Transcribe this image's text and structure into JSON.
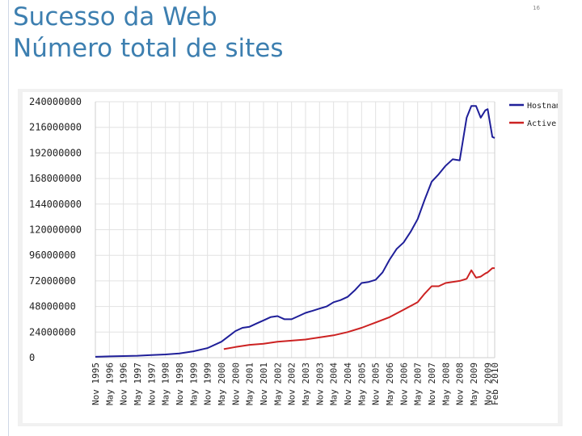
{
  "slide": {
    "title_line1": "Sucesso da Web",
    "title_line2": "Número total de sites",
    "number": "16"
  },
  "chart_data": {
    "type": "line",
    "ylim": [
      0,
      240000000
    ],
    "yticks": [
      0,
      24000000,
      48000000,
      72000000,
      96000000,
      120000000,
      144000000,
      168000000,
      192000000,
      216000000,
      240000000
    ],
    "ytick_labels": [
      "0",
      "24000000",
      "48000000",
      "72000000",
      "96000000",
      "120000000",
      "144000000",
      "168000000",
      "192000000",
      "216000000",
      "240000000"
    ],
    "x_tick_labels": [
      "Nov 1995",
      "May 1996",
      "Nov 1996",
      "May 1997",
      "Nov 1997",
      "May 1998",
      "Nov 1998",
      "May 1999",
      "Nov 1999",
      "May 2000",
      "Nov 2000",
      "May 2001",
      "Nov 2001",
      "May 2002",
      "Nov 2002",
      "May 2003",
      "Nov 2003",
      "May 2004",
      "Nov 2004",
      "May 2005",
      "Nov 2005",
      "May 2006",
      "Nov 2006",
      "May 2007",
      "Nov 2007",
      "May 2008",
      "Nov 2008",
      "May 2009",
      "Nov 2009",
      "Feb 2010"
    ],
    "x_tick_months": [
      0,
      6,
      12,
      18,
      24,
      30,
      36,
      42,
      48,
      54,
      60,
      66,
      72,
      78,
      84,
      90,
      96,
      102,
      108,
      114,
      120,
      126,
      132,
      138,
      144,
      150,
      156,
      162,
      168,
      171
    ],
    "grid": true,
    "legend_position": "right",
    "series": [
      {
        "name": "Hostnames",
        "color": "#1f1f99",
        "x": [
          "1995-11",
          "1996-05",
          "1996-11",
          "1997-05",
          "1997-11",
          "1998-05",
          "1998-11",
          "1999-05",
          "1999-11",
          "2000-05",
          "2000-08",
          "2000-11",
          "2001-02",
          "2001-05",
          "2001-08",
          "2001-11",
          "2002-02",
          "2002-05",
          "2002-08",
          "2002-11",
          "2003-02",
          "2003-05",
          "2003-08",
          "2003-11",
          "2004-02",
          "2004-05",
          "2004-08",
          "2004-11",
          "2005-02",
          "2005-05",
          "2005-08",
          "2005-11",
          "2006-02",
          "2006-05",
          "2006-08",
          "2006-11",
          "2007-02",
          "2007-05",
          "2007-08",
          "2007-11",
          "2008-02",
          "2008-05",
          "2008-08",
          "2008-11",
          "2009-02",
          "2009-04",
          "2009-06",
          "2009-08",
          "2009-10",
          "2009-11",
          "2010-01",
          "2010-02"
        ],
        "values": [
          800000,
          1200000,
          1500000,
          1800000,
          2500000,
          3000000,
          4000000,
          6000000,
          9000000,
          15000000,
          20000000,
          25000000,
          28000000,
          29000000,
          32000000,
          35000000,
          38000000,
          39000000,
          36000000,
          36000000,
          39000000,
          42000000,
          44000000,
          46000000,
          48000000,
          52000000,
          54000000,
          57000000,
          63000000,
          70000000,
          71000000,
          73000000,
          80000000,
          92000000,
          102000000,
          108000000,
          118000000,
          130000000,
          148000000,
          165000000,
          172000000,
          180000000,
          186000000,
          185000000,
          225000000,
          236000000,
          236000000,
          225000000,
          232000000,
          233000000,
          207000000,
          206000000
        ]
      },
      {
        "name": "Active",
        "color": "#cc2222",
        "x": [
          "2000-06",
          "2000-11",
          "2001-05",
          "2001-11",
          "2002-05",
          "2002-11",
          "2003-05",
          "2003-11",
          "2004-05",
          "2004-11",
          "2005-05",
          "2005-11",
          "2006-05",
          "2006-11",
          "2007-05",
          "2007-08",
          "2007-11",
          "2008-02",
          "2008-05",
          "2008-11",
          "2009-02",
          "2009-04",
          "2009-06",
          "2009-08",
          "2009-10",
          "2009-11",
          "2010-01",
          "2010-02"
        ],
        "values": [
          8000000,
          10000000,
          12000000,
          13000000,
          15000000,
          16000000,
          17000000,
          19000000,
          21000000,
          24000000,
          28000000,
          33000000,
          38000000,
          45000000,
          52000000,
          60000000,
          67000000,
          67000000,
          70000000,
          72000000,
          74000000,
          82000000,
          75000000,
          76000000,
          79000000,
          80000000,
          84000000,
          84000000
        ]
      }
    ]
  }
}
